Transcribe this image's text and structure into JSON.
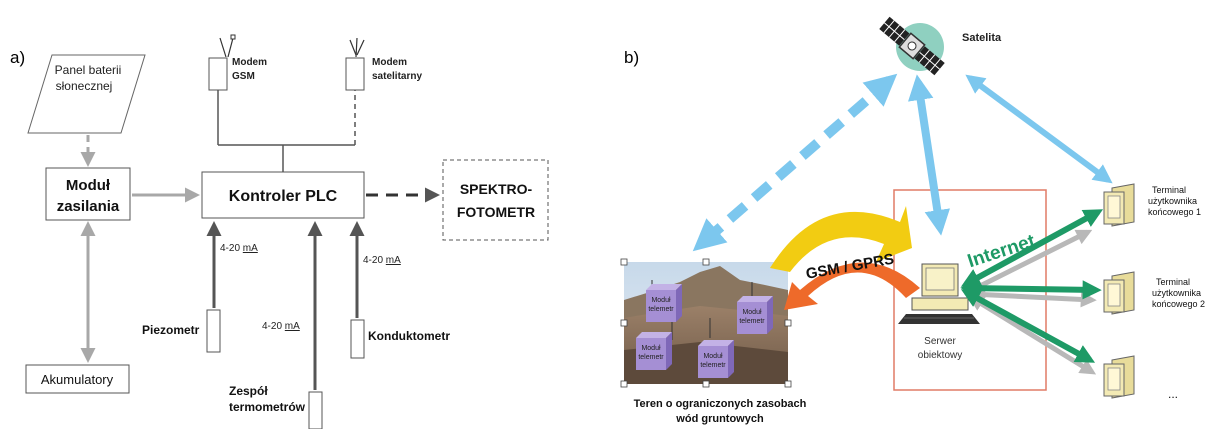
{
  "panel_a": {
    "letter": "a)",
    "solar": [
      "Panel baterii",
      "słonecznej"
    ],
    "modem_gsm": [
      "Modem",
      "GSM"
    ],
    "modem_sat": [
      "Modem",
      "satelitarny"
    ],
    "power_module": [
      "Moduł",
      "zasilania"
    ],
    "plc": "Kontroler PLC",
    "spectro": [
      "SPEKTRO-",
      "FOTOMETR"
    ],
    "current_prefix": "4-20 ",
    "current_unit": "mA",
    "piezometer": "Piezometr",
    "conductometer": "Konduktometr",
    "thermo": [
      "Zespół",
      "termometrów"
    ],
    "battery": "Akumulatory"
  },
  "panel_b": {
    "letter": "b)",
    "satellite": "Satelita",
    "gsm_gprs": "GSM / GPRS",
    "internet": "Internet",
    "server": [
      "Serwer",
      "obiektowy"
    ],
    "terminal1": [
      "Terminal",
      "użytkownika",
      "końcowego 1"
    ],
    "terminal2": [
      "Terminal",
      "użytkownika",
      "końcowego 2"
    ],
    "ellipsis": "...",
    "field": [
      "Teren o ograniczonych zasobach",
      "wód gruntowych"
    ],
    "module": [
      "Moduł",
      "telemetr"
    ]
  },
  "colors": {
    "gray_arrow": "#a8a8a8",
    "dark_arrow": "#555555",
    "blue": "#7cc7ee",
    "green": "#1e9a66",
    "server_box": "#e07b66",
    "satellite_disc": "#8fd0c0",
    "module": "#a58fd4",
    "yellow": "#f2cc12",
    "orange": "#ee6a2a",
    "terminal": "#f3eab4"
  }
}
